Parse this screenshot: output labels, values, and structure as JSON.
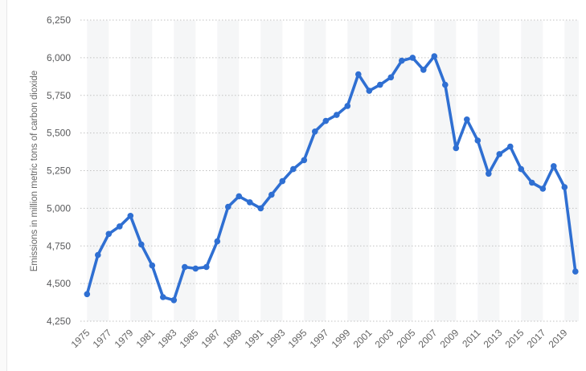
{
  "chart_data": {
    "type": "line",
    "title": "",
    "xlabel": "",
    "ylabel": "Emissions in million metric tons of carbon dioxide",
    "x": [
      1975,
      1976,
      1977,
      1978,
      1979,
      1980,
      1981,
      1982,
      1983,
      1984,
      1985,
      1986,
      1987,
      1988,
      1989,
      1990,
      1991,
      1992,
      1993,
      1994,
      1995,
      1996,
      1997,
      1998,
      1999,
      2000,
      2001,
      2002,
      2003,
      2004,
      2005,
      2006,
      2007,
      2008,
      2009,
      2010,
      2011,
      2012,
      2013,
      2014,
      2015,
      2016,
      2017,
      2018,
      2019,
      2020
    ],
    "series": [
      {
        "name": "CO2 emissions",
        "values": [
          4430,
          4690,
          4830,
          4880,
          4950,
          4760,
          4620,
          4410,
          4390,
          4610,
          4600,
          4610,
          4780,
          5010,
          5080,
          5040,
          5000,
          5090,
          5180,
          5260,
          5320,
          5510,
          5580,
          5620,
          5680,
          5890,
          5780,
          5820,
          5870,
          5980,
          6000,
          5920,
          6010,
          5820,
          5400,
          5590,
          5450,
          5230,
          5360,
          5410,
          5260,
          5170,
          5130,
          5280,
          5140,
          4580
        ]
      }
    ],
    "ylim": [
      4250,
      6250
    ],
    "ytick_step": 250,
    "yticks": [
      "4,250",
      "4,500",
      "4,750",
      "5,000",
      "5,250",
      "5,500",
      "5,750",
      "6,000",
      "6,250"
    ],
    "xticks": [
      1975,
      1977,
      1979,
      1981,
      1983,
      1985,
      1987,
      1989,
      1991,
      1993,
      1995,
      1997,
      1999,
      2001,
      2003,
      2005,
      2007,
      2009,
      2011,
      2013,
      2015,
      2017,
      2019
    ],
    "grid": "horizontal-dotted",
    "legend": "none",
    "colors": {
      "line": "#2f6fd2",
      "marker": "#2f6fd2",
      "gridline": "#c2c2c2",
      "stripe": "#f5f6f7",
      "y_tick_text": "#58595b",
      "x_tick_text": "#646464",
      "axis_title_text": "#666666"
    }
  }
}
